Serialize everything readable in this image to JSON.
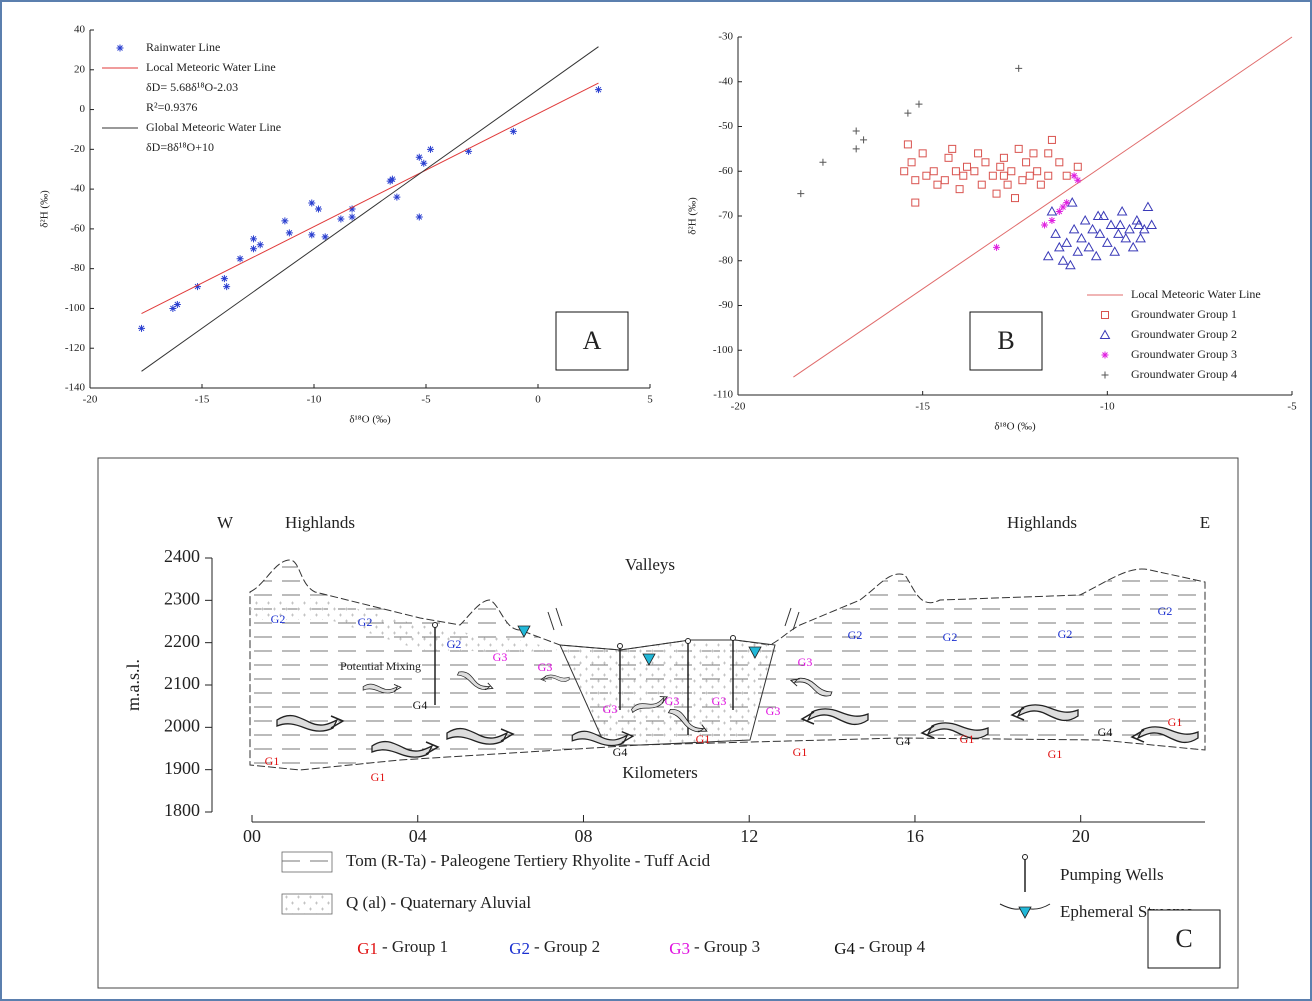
{
  "chart_data": [
    {
      "type": "scatter",
      "panel_label": "A",
      "x_label": "δ¹⁸O (‰)",
      "y_label": "δ²H (‰)",
      "xlim": [
        -20,
        5
      ],
      "xticks": [
        -20,
        -15,
        -10,
        -5,
        0,
        5
      ],
      "ylim": [
        -140,
        40
      ],
      "yticks": [
        -140,
        -120,
        -100,
        -80,
        -60,
        -40,
        -20,
        0,
        20,
        40
      ],
      "legend": "upper left",
      "series": [
        {
          "name": "Rainwater Line",
          "marker": "star",
          "color": "#2a3fd0",
          "x": [
            -17.7,
            -16.3,
            -16.1,
            -15.2,
            -14.0,
            -13.9,
            -13.3,
            -12.7,
            -12.7,
            -12.4,
            -11.3,
            -11.1,
            -10.1,
            -10.1,
            -9.8,
            -9.5,
            -8.8,
            -8.3,
            -8.3,
            -6.6,
            -6.5,
            -6.3,
            -5.3,
            -5.3,
            -5.1,
            -4.8,
            -3.1,
            -1.1,
            2.7
          ],
          "values": [
            -110,
            -100,
            -98,
            -89,
            -85,
            -89,
            -75,
            -65,
            -70,
            -68,
            -56,
            -62,
            -47,
            -63,
            -50,
            -64,
            -55,
            -54,
            -50,
            -36,
            -35,
            -44,
            -24,
            -54,
            -27,
            -20,
            -21,
            -11,
            10
          ]
        },
        {
          "name": "Local Meteoric Water Line",
          "marker": "line",
          "color": "#e03a3a",
          "annotations": [
            "δD= 5.68δ¹⁸O-2.03",
            "R²=0.9376"
          ],
          "x": [
            -17.7,
            2.7
          ],
          "values": [
            -102.6,
            13.3
          ]
        },
        {
          "name": "Global Meteoric Water Line",
          "marker": "line",
          "color": "#333333",
          "annotations": [
            "δD=8δ¹⁸O+10"
          ],
          "x": [
            -17.7,
            2.7
          ],
          "values": [
            -131.6,
            31.6
          ]
        }
      ]
    },
    {
      "type": "scatter",
      "panel_label": "B",
      "x_label": "δ¹⁸O (‰)",
      "y_label": "δ²H (‰)",
      "xlim": [
        -20,
        -5
      ],
      "xticks": [
        -20,
        -15,
        -10,
        -5
      ],
      "ylim": [
        -110,
        -30
      ],
      "yticks": [
        -110,
        -100,
        -90,
        -80,
        -70,
        -60,
        -50,
        -40,
        -30
      ],
      "legend": "lower right",
      "series": [
        {
          "name": "Local Meteoric Water Line",
          "marker": "line",
          "color": "#e06b6b",
          "x": [
            -18.5,
            -5
          ],
          "values": [
            -106,
            -30
          ]
        },
        {
          "name": "Groundwater Group 1",
          "marker": "square",
          "color": "#d9534f",
          "x": [
            -15.5,
            -15.3,
            -15.2,
            -15.2,
            -15.0,
            -14.9,
            -14.7,
            -14.6,
            -14.4,
            -14.3,
            -14.1,
            -14.0,
            -13.9,
            -13.8,
            -13.6,
            -13.5,
            -13.4,
            -13.3,
            -13.1,
            -13.0,
            -12.9,
            -12.8,
            -12.8,
            -12.7,
            -12.6,
            -12.5,
            -12.4,
            -12.3,
            -12.2,
            -12.1,
            -12.0,
            -11.9,
            -11.8,
            -11.6,
            -11.6,
            -11.5,
            -11.3,
            -11.1,
            -10.8,
            -15.4,
            -14.2
          ],
          "values": [
            -60,
            -58,
            -62,
            -67,
            -56,
            -61,
            -60,
            -63,
            -62,
            -57,
            -60,
            -64,
            -61,
            -59,
            -60,
            -56,
            -63,
            -58,
            -61,
            -65,
            -59,
            -61,
            -57,
            -63,
            -60,
            -66,
            -55,
            -62,
            -58,
            -61,
            -56,
            -60,
            -63,
            -56,
            -61,
            -53,
            -58,
            -61,
            -59,
            -54,
            -55
          ]
        },
        {
          "name": "Groundwater Group 2",
          "marker": "triangle",
          "color": "#3a3ab8",
          "x": [
            -11.4,
            -11.3,
            -11.2,
            -11.1,
            -11.0,
            -10.9,
            -10.8,
            -10.7,
            -10.6,
            -10.5,
            -10.4,
            -10.3,
            -10.2,
            -10.1,
            -10.0,
            -9.9,
            -9.8,
            -9.7,
            -9.6,
            -9.5,
            -9.4,
            -9.3,
            -9.2,
            -9.1,
            -9.0,
            -8.9,
            -8.8,
            -11.5,
            -10.95,
            -10.25,
            -9.65,
            -9.15,
            -11.6
          ],
          "values": [
            -74,
            -77,
            -80,
            -76,
            -81,
            -73,
            -78,
            -75,
            -71,
            -77,
            -73,
            -79,
            -74,
            -70,
            -76,
            -72,
            -78,
            -74,
            -69,
            -75,
            -73,
            -77,
            -71,
            -75,
            -73,
            -68,
            -72,
            -69,
            -67,
            -70,
            -72,
            -72,
            -79
          ]
        },
        {
          "name": "Groundwater Group 3",
          "marker": "star",
          "color": "#e020e0",
          "x": [
            -13.0,
            -11.7,
            -11.5,
            -11.3,
            -11.2,
            -11.1,
            -10.9,
            -10.8
          ],
          "values": [
            -77,
            -72,
            -71,
            -69,
            -68,
            -67,
            -61,
            -62
          ]
        },
        {
          "name": "Groundwater Group 4",
          "marker": "plus",
          "color": "#555555",
          "x": [
            -18.3,
            -17.7,
            -16.8,
            -16.8,
            -16.6,
            -15.4,
            -15.1,
            -12.4
          ],
          "values": [
            -65,
            -58,
            -51,
            -55,
            -53,
            -47,
            -45,
            -37
          ]
        }
      ]
    }
  ],
  "diagram": {
    "direction_left": "W",
    "direction_right": "E",
    "region_left": "Highlands",
    "region_right": "Highlands",
    "region_center": "Valleys",
    "x_label": "Kilometers",
    "y_label": "m.a.s.l.",
    "annotation": "Potential Mixing",
    "ylim": [
      1800,
      2400
    ],
    "yticks": [
      1800,
      1900,
      2000,
      2100,
      2200,
      2300,
      2400
    ],
    "xlim": [
      0,
      23
    ],
    "xticks": [
      {
        "value": 0,
        "label": "00"
      },
      {
        "value": 4,
        "label": "04"
      },
      {
        "value": 8,
        "label": "08"
      },
      {
        "value": 12,
        "label": "12"
      },
      {
        "value": 16,
        "label": "16"
      },
      {
        "value": 20,
        "label": "20"
      }
    ],
    "section_labels": [
      "G2",
      "G2",
      "G2",
      "G3",
      "G3",
      "G3",
      "G3",
      "G3",
      "G3",
      "G3",
      "G4",
      "G4",
      "G4",
      "G4",
      "G1",
      "G1",
      "G1",
      "G1",
      "G1",
      "G1",
      "G1",
      "G2",
      "G2",
      "G2",
      "G2"
    ],
    "legend": {
      "units": [
        "Tom (R-Ta) - Paleogene Tertiery Rhyolite - Tuff Acid",
        "Q (al) - Quaternary Aluvial"
      ],
      "symbols": [
        "Pumping Wells",
        "Ephemeral Streams"
      ],
      "groups": [
        {
          "code": "G1",
          "name": "- Group 1",
          "color": "#e01010"
        },
        {
          "code": "G2",
          "name": "- Group 2",
          "color": "#1a2fd0"
        },
        {
          "code": "G3",
          "name": "- Group 3",
          "color": "#e010e0"
        },
        {
          "code": "G4",
          "name": "- Group 4",
          "color": "#111111"
        }
      ]
    },
    "panel_label": "C"
  }
}
